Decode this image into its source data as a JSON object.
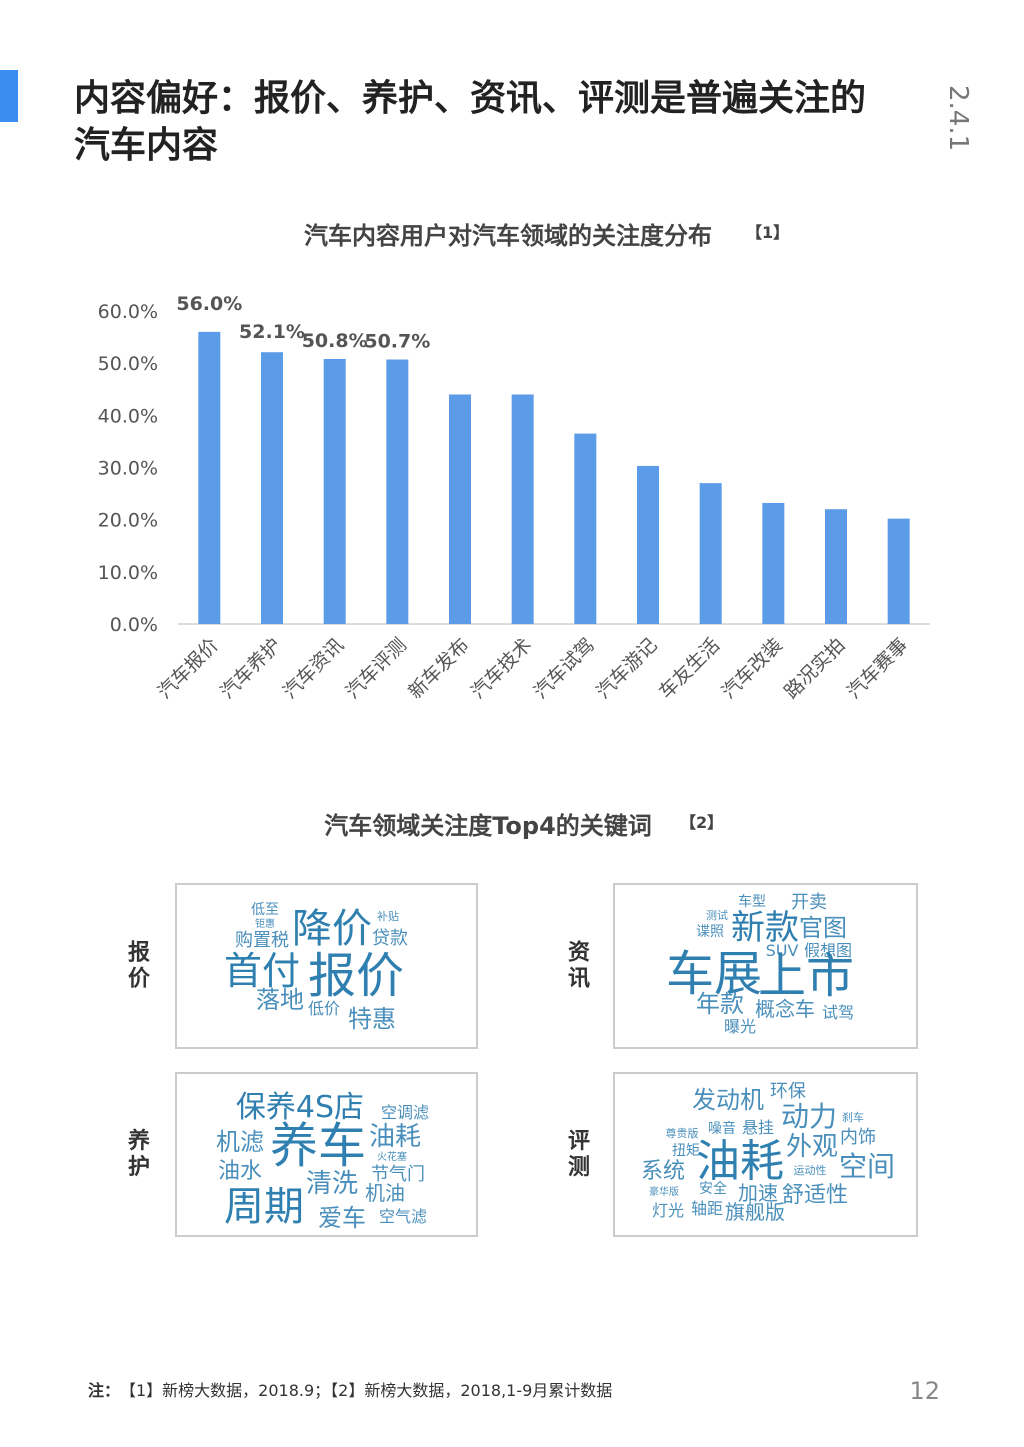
{
  "header": {
    "title_lines": [
      "内容偏好：报价、养护、资讯、评测是普遍关注的",
      "汽车内容"
    ],
    "section": "2.4.1"
  },
  "chart_data": {
    "type": "bar",
    "title": "汽车内容用户对汽车领域的关注度分布",
    "title_note": "【1】",
    "categories": [
      "汽车报价",
      "汽车养护",
      "汽车资讯",
      "汽车评测",
      "新车发布",
      "汽车技术",
      "汽车试驾",
      "汽车游记",
      "车友生活",
      "汽车改装",
      "路况实拍",
      "汽车赛事"
    ],
    "values": [
      56.0,
      52.1,
      50.8,
      50.7,
      44.0,
      44.0,
      36.5,
      30.3,
      27.0,
      23.2,
      22.0,
      20.2
    ],
    "value_labels": [
      "56.0%",
      "52.1%",
      "50.8%",
      "50.7%",
      null,
      null,
      null,
      null,
      null,
      null,
      null,
      null
    ],
    "color": "#5b9be8",
    "ylim": [
      0,
      60
    ],
    "yticks": [
      {
        "value": 0,
        "label": "0.0%"
      },
      {
        "value": 10,
        "label": "10.0%"
      },
      {
        "value": 20,
        "label": "20.0%"
      },
      {
        "value": 30,
        "label": "30.0%"
      },
      {
        "value": 40,
        "label": "40.0%"
      },
      {
        "value": 50,
        "label": "50.0%"
      },
      {
        "value": 60,
        "label": "60.0%"
      }
    ],
    "grid": false
  },
  "keywords": {
    "title": "汽车领域关注度Top4的关键词",
    "title_note": "【2】",
    "panels": [
      {
        "label": "报价",
        "words": [
          "低至",
          "钜惠",
          "降价",
          "补贴",
          "购置税",
          "贷款",
          "首付",
          "报价",
          "落地",
          "低价",
          "特惠"
        ]
      },
      {
        "label": "资讯",
        "words": [
          "车型",
          "开卖",
          "测试",
          "新款",
          "官图",
          "谍照",
          "SUV",
          "假想图",
          "车展",
          "上市",
          "年款",
          "概念车",
          "试驾",
          "曝光"
        ]
      },
      {
        "label": "养护",
        "words": [
          "保养4S店",
          "空调滤",
          "机滤",
          "养车",
          "油耗",
          "火花塞",
          "油水",
          "清洗",
          "节气门",
          "机油",
          "周期",
          "爱车",
          "空气滤"
        ]
      },
      {
        "label": "评测",
        "words": [
          "发动机",
          "环保",
          "动力",
          "刹车",
          "尊贵版",
          "噪音",
          "悬挂",
          "内饰",
          "扭矩",
          "外观",
          "油耗",
          "系统",
          "运动性",
          "空间",
          "安全",
          "豪华版",
          "加速",
          "舒适性",
          "灯光",
          "轴距",
          "旗舰版"
        ]
      }
    ]
  },
  "footer": {
    "note_label": "注：",
    "note": "【1】新榜大数据，2018.9；【2】新榜大数据，2018,1-9月累计数据",
    "page": "12"
  }
}
